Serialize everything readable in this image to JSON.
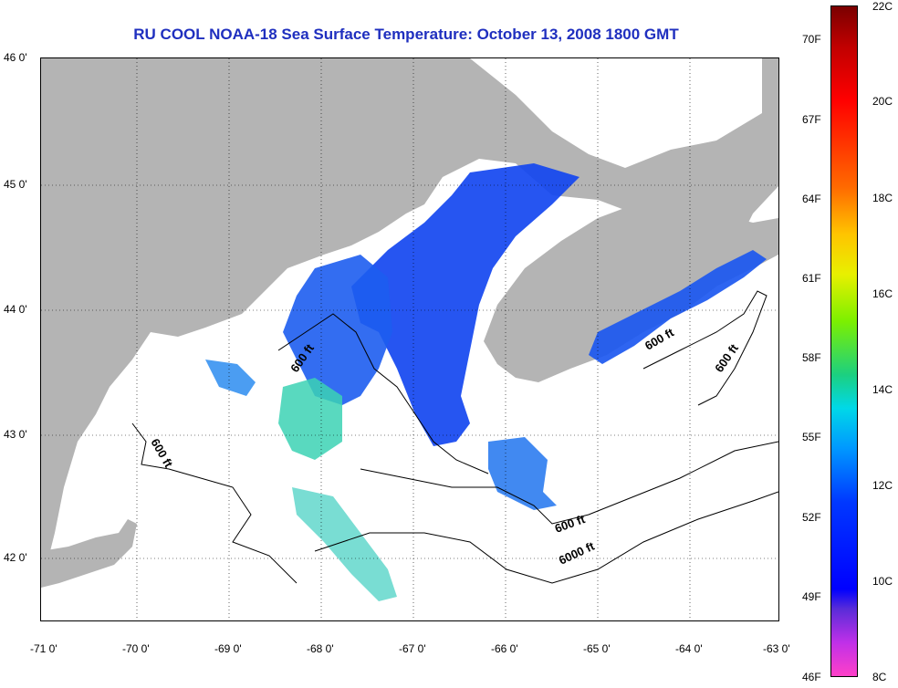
{
  "title": "RU COOL  NOAA-18  Sea Surface Temperature:  October 13, 2008 1800 GMT",
  "axes": {
    "x_ticks": [
      "-71 0'",
      "-70 0'",
      "-69 0'",
      "-68 0'",
      "-67 0'",
      "-66 0'",
      "-65 0'",
      "-64 0'",
      "-63 0'"
    ],
    "y_ticks": [
      "46 0'",
      "45 0'",
      "44 0'",
      "43 0'",
      "42 0'"
    ],
    "lon_range": [
      -71,
      -63
    ],
    "lat_range": [
      41.5,
      46
    ]
  },
  "contour_labels": {
    "c1": "600 ft",
    "c2": "600 ft",
    "c3": "600 ft",
    "c4": "600 ft",
    "c5": "600 ft",
    "c6": "6000 ft"
  },
  "colorbar": {
    "celsius": [
      "22C",
      "20C",
      "18C",
      "16C",
      "14C",
      "12C",
      "10C",
      "8C"
    ],
    "fahrenheit": [
      "70F",
      "67F",
      "64F",
      "61F",
      "58F",
      "55F",
      "52F",
      "49F",
      "46F"
    ]
  },
  "colors": {
    "land": "#b4b4b4",
    "title": "#1f2fbf",
    "sst_cold": "#1446f0",
    "sst_warm": "#3cd2b4"
  }
}
